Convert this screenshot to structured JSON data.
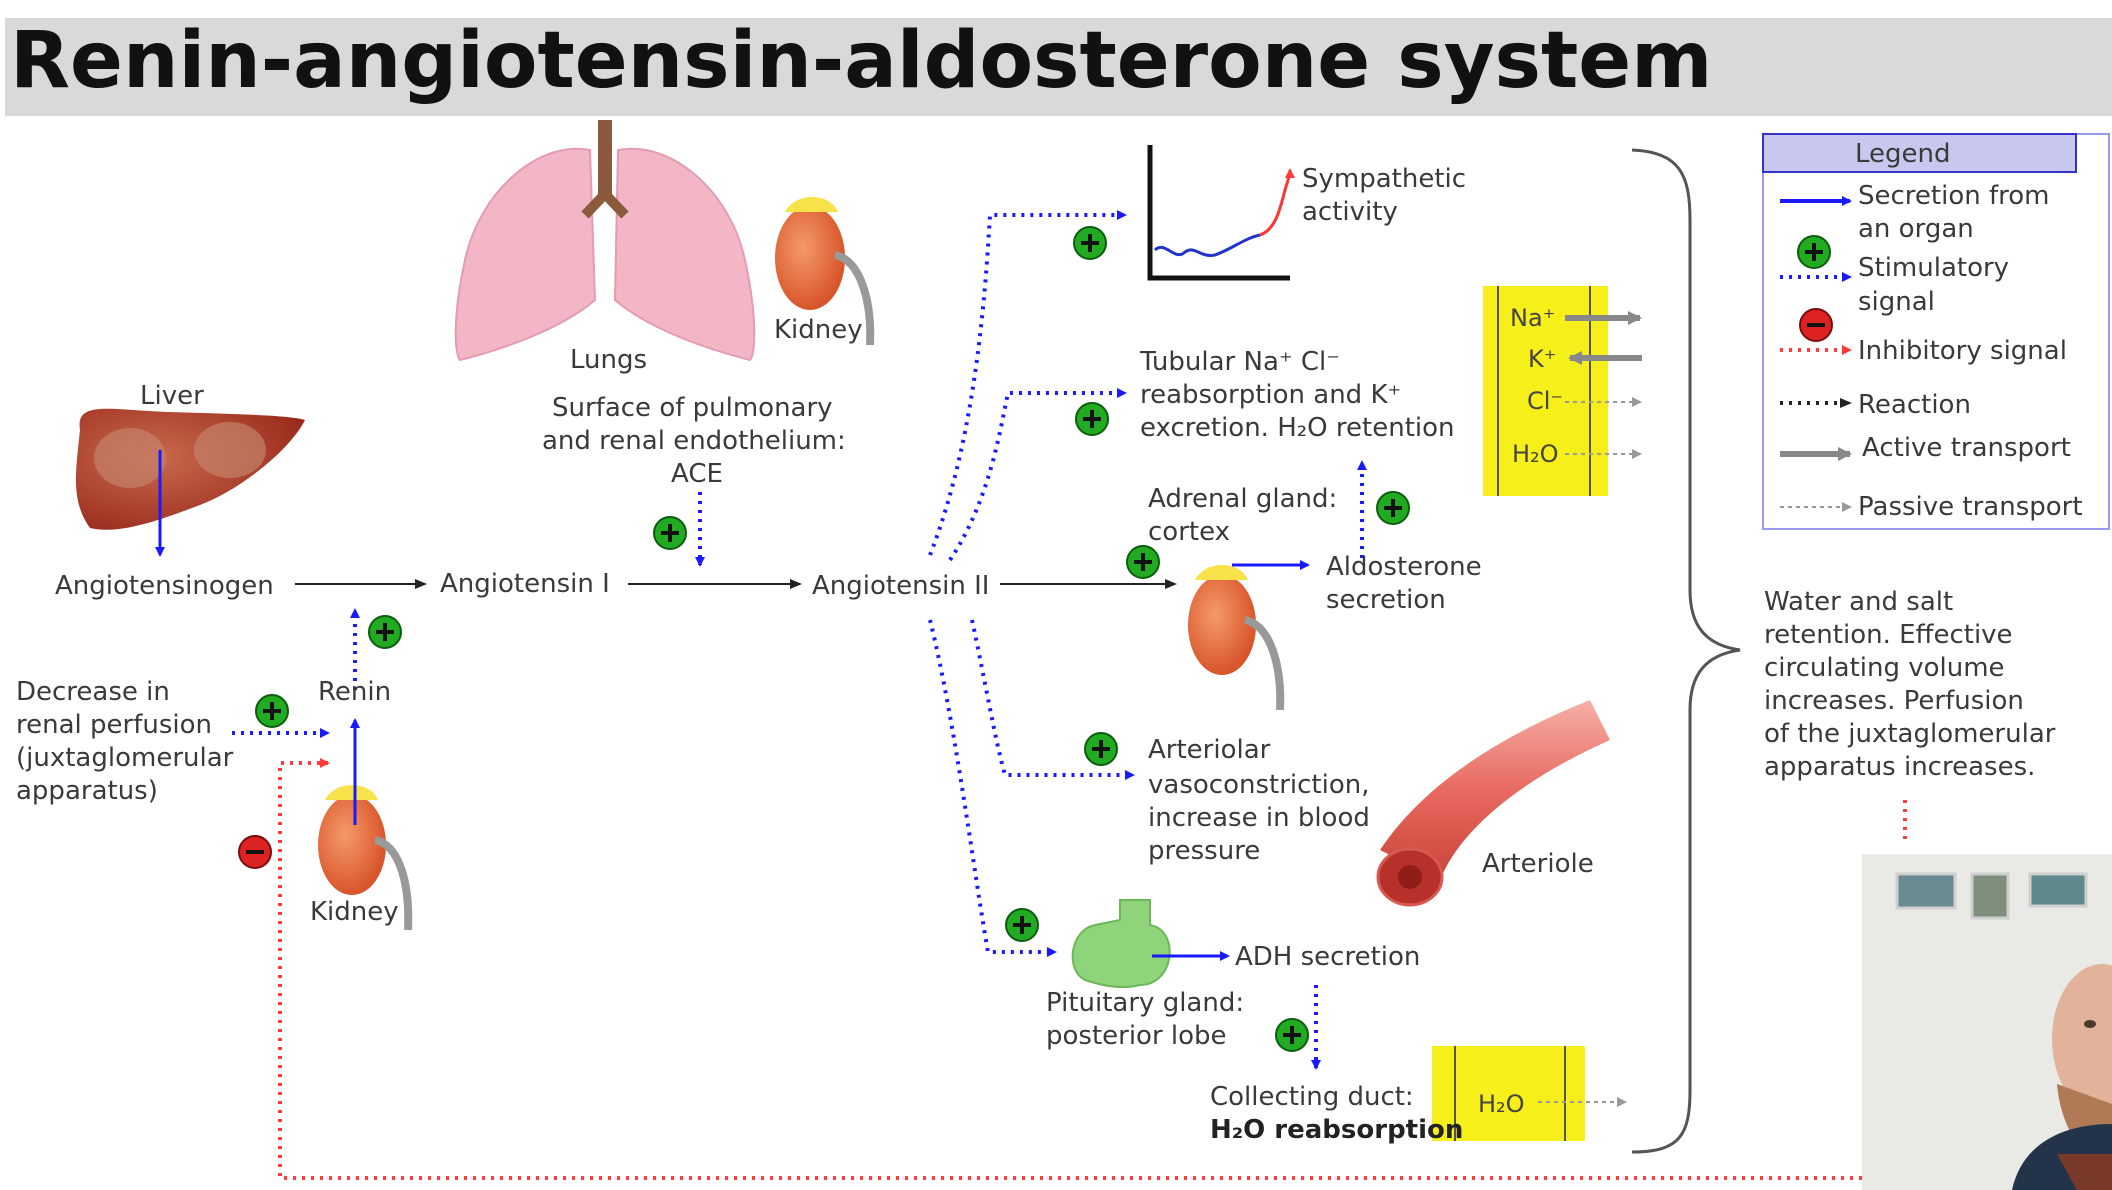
{
  "title": "Renin-angiotensin-aldosterone system",
  "colors": {
    "secretion": "#1a1aff",
    "stimulatory": "#1a1aff",
    "inhibitory": "#ff3b3b",
    "reaction": "#222222",
    "transport": "#888888",
    "plus_badge": "#22aa22",
    "minus_badge": "#dd2222",
    "highlight": "#f7ef1a"
  },
  "organs": {
    "lungs": "Lungs",
    "kidney_top": "Kidney",
    "liver": "Liver",
    "kidney_left": "Kidney",
    "arteriole": "Arteriole"
  },
  "molecules": {
    "angiotensinogen": "Angiotensinogen",
    "angiotensin_i": "Angiotensin I",
    "angiotensin_ii": "Angiotensin II",
    "renin": "Renin"
  },
  "ace": {
    "line1": "Surface of pulmonary",
    "line2": "and renal endothelium:",
    "line3": "ACE"
  },
  "perfusion": {
    "line1": "Decrease in",
    "line2": "renal perfusion",
    "line3": "(juxtaglomerular",
    "line4": "apparatus)"
  },
  "effects": {
    "sympathetic": {
      "line1": "Sympathetic",
      "line2": "activity"
    },
    "tubular": {
      "line1": "Tubular Na⁺ Cl⁻",
      "line2": "reabsorption and K⁺",
      "line3": "excretion. H₂O retention"
    },
    "adrenal": {
      "line1": "Adrenal gland:",
      "line2": "cortex"
    },
    "aldosterone": {
      "line1": "Aldosterone",
      "line2": "secretion"
    },
    "arteriolar": {
      "line1": "Arteriolar",
      "line2": "vasoconstriction,",
      "line3": "increase in blood",
      "line4": "pressure"
    },
    "adh": "ADH secretion",
    "pituitary": {
      "line1": "Pituitary gland:",
      "line2": "posterior lobe"
    },
    "collecting": {
      "line1": "Collecting duct:",
      "line2": "H₂O reabsorption"
    }
  },
  "ions": {
    "na": "Na⁺",
    "k": "K⁺",
    "cl": "Cl⁻",
    "h2o": "H₂O",
    "h2o_duct": "H₂O"
  },
  "outcome": {
    "line1": "Water and salt",
    "line2": "retention. Effective",
    "line3": "circulating volume",
    "line4": "increases. Perfusion",
    "line5": "of the juxtaglomerular",
    "line6": "apparatus increases."
  },
  "legend": {
    "title": "Legend",
    "secretion": {
      "line1": "Secretion from",
      "line2": "an organ"
    },
    "stimulatory": {
      "line1": "Stimulatory",
      "line2": "signal"
    },
    "inhibitory": "Inhibitory signal",
    "reaction": "Reaction",
    "active": "Active transport",
    "passive": "Passive transport"
  }
}
